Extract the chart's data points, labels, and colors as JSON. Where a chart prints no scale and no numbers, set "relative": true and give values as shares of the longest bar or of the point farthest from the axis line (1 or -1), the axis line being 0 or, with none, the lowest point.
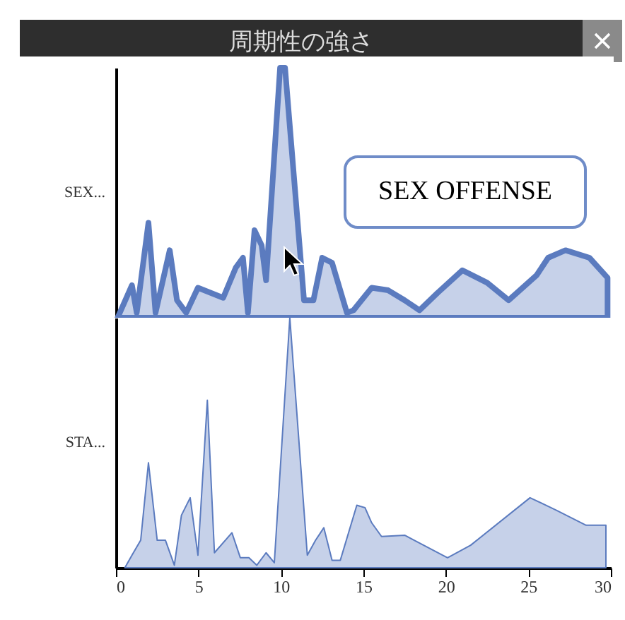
{
  "chart_data": [
    {
      "type": "area",
      "title": "周期性の強さ",
      "relative": true,
      "xlim": [
        0,
        30
      ],
      "tick_labels": false,
      "annotations": [
        "SEX OFFENSE"
      ],
      "series": [
        {
          "name": "SEX...",
          "color": "#5b7bbf",
          "x": [
            0.1,
            0.97,
            1.26,
            1.97,
            2.4,
            3.26,
            3.7,
            4.26,
            4.97,
            6.5,
            7.26,
            7.7,
            8.0,
            8.4,
            8.83,
            9.1,
            9.95,
            10.25,
            11.4,
            11.97,
            12.5,
            13.1,
            14.0,
            14.4,
            15.5,
            16.5,
            17.5,
            18.4,
            19.5,
            21.0,
            22.5,
            23.8,
            25.5,
            26.2,
            27.25,
            28.7,
            29.8
          ],
          "values": [
            0,
            0.13,
            0.02,
            0.38,
            0.02,
            0.27,
            0.07,
            0.02,
            0.12,
            0.08,
            0.2,
            0.24,
            0.02,
            0.35,
            0.29,
            0.15,
            1,
            1,
            0.07,
            0.07,
            0.24,
            0.22,
            0.02,
            0.03,
            0.12,
            0.11,
            0.07,
            0.03,
            0.1,
            0.19,
            0.14,
            0.07,
            0.17,
            0.24,
            0.27,
            0.24,
            0.16
          ]
        }
      ]
    },
    {
      "type": "area",
      "relative": true,
      "xlim": [
        0,
        30
      ],
      "xticks": [
        0,
        5,
        10,
        15,
        20,
        25,
        30
      ],
      "tick_labels": "x",
      "series": [
        {
          "name": "STA...",
          "color": "#5b7bbf",
          "x": [
            0.54,
            0.97,
            1.5,
            1.97,
            2.5,
            3.0,
            3.54,
            3.97,
            4.5,
            4.97,
            5.54,
            5.97,
            7.03,
            7.54,
            8.06,
            8.54,
            9.1,
            9.6,
            10.54,
            11.6,
            12.1,
            12.6,
            13.1,
            13.6,
            14.6,
            15.1,
            15.5,
            16.1,
            17.5,
            20.1,
            21.5,
            25.1,
            26.7,
            28.5,
            29.7
          ],
          "values": [
            0,
            0.05,
            0.11,
            0.42,
            0.11,
            0.11,
            0.01,
            0.21,
            0.28,
            0.05,
            0.67,
            0.06,
            0.14,
            0.04,
            0.04,
            0.01,
            0.06,
            0.02,
            1,
            0.05,
            0.11,
            0.16,
            0.03,
            0.03,
            0.25,
            0.24,
            0.18,
            0.125,
            0.13,
            0.04,
            0.09,
            0.28,
            0.23,
            0.17,
            0.17
          ]
        }
      ]
    }
  ]
}
